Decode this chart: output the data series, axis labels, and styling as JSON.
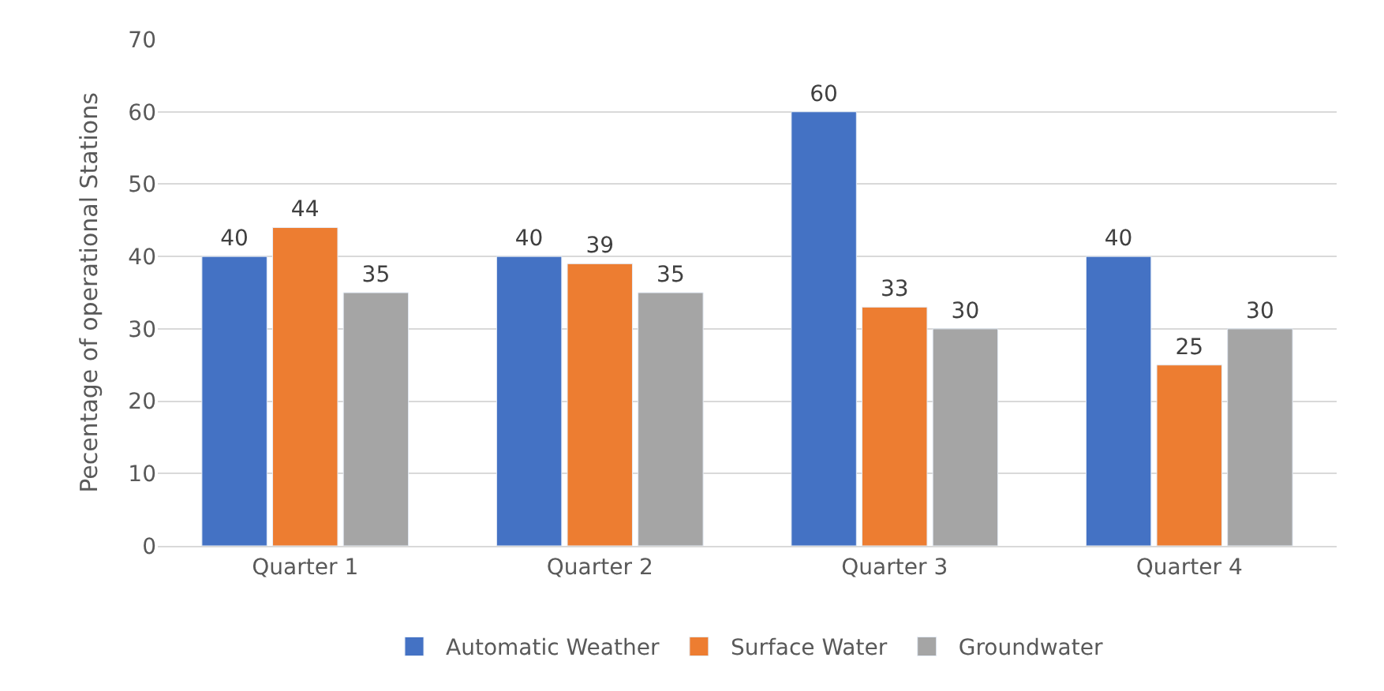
{
  "chart_data": {
    "type": "bar",
    "ylabel": "Pecentage of operational Stations",
    "categories": [
      "Quarter 1",
      "Quarter 2",
      "Quarter 3",
      "Quarter 4"
    ],
    "series": [
      {
        "name": "Automatic Weather",
        "color": "#4472c4",
        "values": [
          40,
          40,
          60,
          40
        ]
      },
      {
        "name": "Surface Water",
        "color": "#ed7d31",
        "values": [
          44,
          39,
          33,
          25
        ]
      },
      {
        "name": "Groundwater",
        "color": "#a5a5a5",
        "values": [
          35,
          35,
          30,
          30
        ]
      }
    ],
    "ylim": [
      0,
      70
    ],
    "yticks": [
      0,
      10,
      20,
      30,
      40,
      50,
      60,
      70
    ],
    "grid": "y",
    "legend": "bottom",
    "data_labels": true
  }
}
